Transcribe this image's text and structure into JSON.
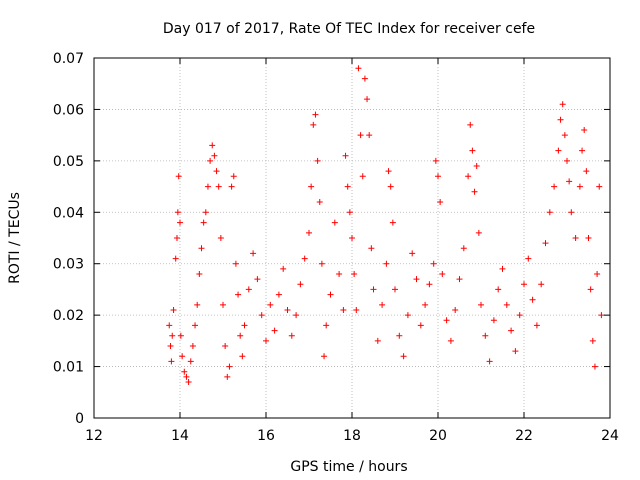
{
  "chart_data": {
    "type": "scatter",
    "title": "Day 017 of 2017, Rate Of TEC Index for receiver cefe",
    "xlabel": "GPS time / hours",
    "ylabel": "ROTI / TECUs",
    "xlim": [
      12,
      24
    ],
    "ylim": [
      0,
      0.07
    ],
    "xticks": [
      12,
      14,
      16,
      18,
      20,
      22,
      24
    ],
    "yticks": [
      0,
      0.01,
      0.02,
      0.03,
      0.04,
      0.05,
      0.06,
      0.07
    ],
    "xtick_labels": [
      "12",
      "14",
      "16",
      "18",
      "20",
      "22",
      "24"
    ],
    "ytick_labels": [
      "0",
      "0.01",
      "0.02",
      "0.03",
      "0.04",
      "0.05",
      "0.06",
      "0.07"
    ],
    "grid": true,
    "marker": "+",
    "marker_color": "#ff0000",
    "series": [
      {
        "name": "ROTI",
        "points": [
          [
            13.75,
            0.018
          ],
          [
            13.78,
            0.014
          ],
          [
            13.8,
            0.011
          ],
          [
            13.82,
            0.016
          ],
          [
            13.85,
            0.021
          ],
          [
            13.9,
            0.031
          ],
          [
            13.93,
            0.035
          ],
          [
            13.95,
            0.04
          ],
          [
            13.97,
            0.047
          ],
          [
            14.0,
            0.038
          ],
          [
            14.02,
            0.016
          ],
          [
            14.05,
            0.012
          ],
          [
            14.1,
            0.009
          ],
          [
            14.15,
            0.008
          ],
          [
            14.2,
            0.007
          ],
          [
            14.25,
            0.011
          ],
          [
            14.3,
            0.014
          ],
          [
            14.35,
            0.018
          ],
          [
            14.4,
            0.022
          ],
          [
            14.45,
            0.028
          ],
          [
            14.5,
            0.033
          ],
          [
            14.55,
            0.038
          ],
          [
            14.6,
            0.04
          ],
          [
            14.65,
            0.045
          ],
          [
            14.7,
            0.05
          ],
          [
            14.75,
            0.053
          ],
          [
            14.8,
            0.051
          ],
          [
            14.85,
            0.048
          ],
          [
            14.9,
            0.045
          ],
          [
            14.95,
            0.035
          ],
          [
            15.0,
            0.022
          ],
          [
            15.05,
            0.014
          ],
          [
            15.1,
            0.008
          ],
          [
            15.15,
            0.01
          ],
          [
            15.2,
            0.045
          ],
          [
            15.25,
            0.047
          ],
          [
            15.3,
            0.03
          ],
          [
            15.35,
            0.024
          ],
          [
            15.4,
            0.016
          ],
          [
            15.45,
            0.012
          ],
          [
            15.5,
            0.018
          ],
          [
            15.6,
            0.025
          ],
          [
            15.7,
            0.032
          ],
          [
            15.8,
            0.027
          ],
          [
            15.9,
            0.02
          ],
          [
            16.0,
            0.015
          ],
          [
            16.1,
            0.022
          ],
          [
            16.2,
            0.017
          ],
          [
            16.3,
            0.024
          ],
          [
            16.4,
            0.029
          ],
          [
            16.5,
            0.021
          ],
          [
            16.6,
            0.016
          ],
          [
            16.7,
            0.02
          ],
          [
            16.8,
            0.026
          ],
          [
            16.9,
            0.031
          ],
          [
            17.0,
            0.036
          ],
          [
            17.05,
            0.045
          ],
          [
            17.1,
            0.057
          ],
          [
            17.15,
            0.059
          ],
          [
            17.2,
            0.05
          ],
          [
            17.25,
            0.042
          ],
          [
            17.3,
            0.03
          ],
          [
            17.35,
            0.012
          ],
          [
            17.4,
            0.018
          ],
          [
            17.5,
            0.024
          ],
          [
            17.6,
            0.038
          ],
          [
            17.7,
            0.028
          ],
          [
            17.8,
            0.021
          ],
          [
            17.85,
            0.051
          ],
          [
            17.9,
            0.045
          ],
          [
            17.95,
            0.04
          ],
          [
            18.0,
            0.035
          ],
          [
            18.05,
            0.028
          ],
          [
            18.1,
            0.021
          ],
          [
            18.15,
            0.068
          ],
          [
            18.2,
            0.055
          ],
          [
            18.25,
            0.047
          ],
          [
            18.3,
            0.066
          ],
          [
            18.35,
            0.062
          ],
          [
            18.4,
            0.055
          ],
          [
            18.45,
            0.033
          ],
          [
            18.5,
            0.025
          ],
          [
            18.6,
            0.015
          ],
          [
            18.7,
            0.022
          ],
          [
            18.8,
            0.03
          ],
          [
            18.85,
            0.048
          ],
          [
            18.9,
            0.045
          ],
          [
            18.95,
            0.038
          ],
          [
            19.0,
            0.025
          ],
          [
            19.1,
            0.016
          ],
          [
            19.2,
            0.012
          ],
          [
            19.3,
            0.02
          ],
          [
            19.4,
            0.032
          ],
          [
            19.5,
            0.027
          ],
          [
            19.6,
            0.018
          ],
          [
            19.7,
            0.022
          ],
          [
            19.8,
            0.026
          ],
          [
            19.9,
            0.03
          ],
          [
            19.95,
            0.05
          ],
          [
            20.0,
            0.047
          ],
          [
            20.05,
            0.042
          ],
          [
            20.1,
            0.028
          ],
          [
            20.2,
            0.019
          ],
          [
            20.3,
            0.015
          ],
          [
            20.4,
            0.021
          ],
          [
            20.5,
            0.027
          ],
          [
            20.6,
            0.033
          ],
          [
            20.7,
            0.047
          ],
          [
            20.75,
            0.057
          ],
          [
            20.8,
            0.052
          ],
          [
            20.85,
            0.044
          ],
          [
            20.9,
            0.049
          ],
          [
            20.95,
            0.036
          ],
          [
            21.0,
            0.022
          ],
          [
            21.1,
            0.016
          ],
          [
            21.2,
            0.011
          ],
          [
            21.3,
            0.019
          ],
          [
            21.4,
            0.025
          ],
          [
            21.5,
            0.029
          ],
          [
            21.6,
            0.022
          ],
          [
            21.7,
            0.017
          ],
          [
            21.8,
            0.013
          ],
          [
            21.9,
            0.02
          ],
          [
            22.0,
            0.026
          ],
          [
            22.1,
            0.031
          ],
          [
            22.2,
            0.023
          ],
          [
            22.3,
            0.018
          ],
          [
            22.4,
            0.026
          ],
          [
            22.5,
            0.034
          ],
          [
            22.6,
            0.04
          ],
          [
            22.7,
            0.045
          ],
          [
            22.8,
            0.052
          ],
          [
            22.85,
            0.058
          ],
          [
            22.9,
            0.061
          ],
          [
            22.95,
            0.055
          ],
          [
            23.0,
            0.05
          ],
          [
            23.05,
            0.046
          ],
          [
            23.1,
            0.04
          ],
          [
            23.2,
            0.035
          ],
          [
            23.3,
            0.045
          ],
          [
            23.35,
            0.052
          ],
          [
            23.4,
            0.056
          ],
          [
            23.45,
            0.048
          ],
          [
            23.5,
            0.035
          ],
          [
            23.55,
            0.025
          ],
          [
            23.6,
            0.015
          ],
          [
            23.65,
            0.01
          ],
          [
            23.7,
            0.028
          ],
          [
            23.75,
            0.045
          ],
          [
            23.8,
            0.02
          ]
        ]
      }
    ]
  }
}
